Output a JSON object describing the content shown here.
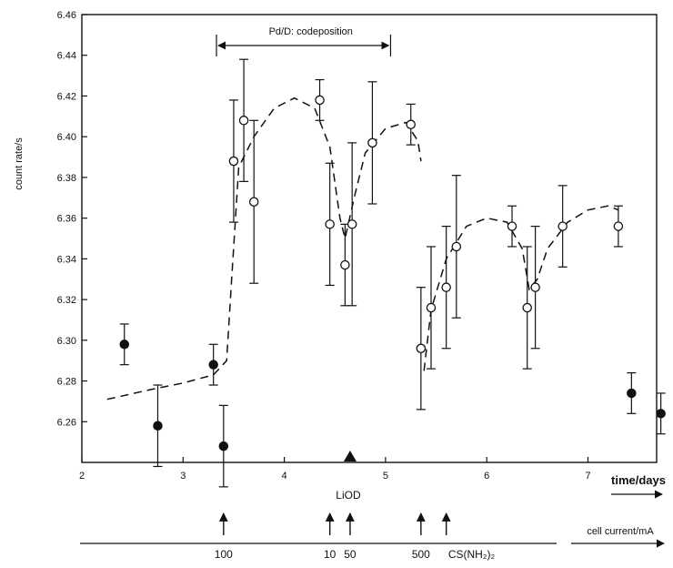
{
  "chart_data": {
    "type": "scatter",
    "title": "",
    "xlabel": "time/days",
    "ylabel": "count rate/s",
    "xlim": [
      2,
      7.45
    ],
    "ylim": [
      6.24,
      6.46
    ],
    "x_ticks": [
      2,
      3,
      4,
      5,
      6,
      7
    ],
    "x_tick_labels": [
      "2",
      "3",
      "4",
      "5",
      "6",
      "7"
    ],
    "y_ticks": [
      6.26,
      6.28,
      6.3,
      6.32,
      6.34,
      6.36,
      6.38,
      6.4,
      6.42,
      6.44,
      6.46
    ],
    "y_tick_labels": [
      "6.26",
      "6.28",
      "6.30",
      "6.32",
      "6.34",
      "6.36",
      "6.38",
      "6.40",
      "6.42",
      "6.44",
      "6.46"
    ],
    "grid": false,
    "series": [
      {
        "marker": "filled-circle",
        "points": [
          {
            "x": 2.42,
            "y": 6.298,
            "err": 0.01
          },
          {
            "x": 2.75,
            "y": 6.258,
            "err": 0.02
          },
          {
            "x": 3.3,
            "y": 6.288,
            "err": 0.01
          },
          {
            "x": 3.4,
            "y": 6.248,
            "err": 0.02
          },
          {
            "x": 7.43,
            "y": 6.274,
            "err": 0.01
          },
          {
            "x": 7.72,
            "y": 6.264,
            "err": 0.01
          }
        ]
      },
      {
        "marker": "open-circle",
        "points": [
          {
            "x": 3.5,
            "y": 6.388,
            "err": 0.03
          },
          {
            "x": 3.6,
            "y": 6.408,
            "err": 0.03
          },
          {
            "x": 3.7,
            "y": 6.368,
            "err": 0.04
          },
          {
            "x": 4.35,
            "y": 6.418,
            "err": 0.01
          },
          {
            "x": 4.45,
            "y": 6.357,
            "err": 0.03
          },
          {
            "x": 4.6,
            "y": 6.337,
            "err": 0.02
          },
          {
            "x": 4.67,
            "y": 6.357,
            "err": 0.04
          },
          {
            "x": 4.87,
            "y": 6.397,
            "err": 0.03
          },
          {
            "x": 5.25,
            "y": 6.406,
            "err": 0.01
          },
          {
            "x": 5.35,
            "y": 6.296,
            "err": 0.03
          },
          {
            "x": 5.45,
            "y": 6.316,
            "err": 0.03
          },
          {
            "x": 5.6,
            "y": 6.326,
            "err": 0.03
          },
          {
            "x": 5.7,
            "y": 6.346,
            "err": 0.035
          },
          {
            "x": 6.25,
            "y": 6.356,
            "err": 0.01
          },
          {
            "x": 6.4,
            "y": 6.316,
            "err": 0.03
          },
          {
            "x": 6.48,
            "y": 6.326,
            "err": 0.03
          },
          {
            "x": 6.75,
            "y": 6.356,
            "err": 0.02
          },
          {
            "x": 7.3,
            "y": 6.356,
            "err": 0.01
          }
        ]
      }
    ],
    "fit_curve": {
      "style": "dashed",
      "segments": [
        [
          [
            2.25,
            6.271
          ],
          [
            2.7,
            6.276
          ],
          [
            3.0,
            6.279
          ],
          [
            3.3,
            6.283
          ],
          [
            3.43,
            6.29
          ],
          [
            3.48,
            6.33
          ],
          [
            3.55,
            6.385
          ],
          [
            3.7,
            6.4
          ],
          [
            3.9,
            6.414
          ],
          [
            4.1,
            6.419
          ],
          [
            4.3,
            6.414
          ],
          [
            4.45,
            6.395
          ],
          [
            4.55,
            6.36
          ],
          [
            4.6,
            6.35
          ],
          [
            4.7,
            6.372
          ],
          [
            4.8,
            6.392
          ],
          [
            5.0,
            6.404
          ],
          [
            5.2,
            6.407
          ],
          [
            5.32,
            6.398
          ],
          [
            5.35,
            6.388
          ]
        ],
        [
          [
            5.38,
            6.285
          ],
          [
            5.45,
            6.315
          ],
          [
            5.6,
            6.34
          ],
          [
            5.8,
            6.356
          ],
          [
            6.0,
            6.36
          ],
          [
            6.2,
            6.358
          ],
          [
            6.35,
            6.345
          ],
          [
            6.42,
            6.325
          ],
          [
            6.5,
            6.33
          ],
          [
            6.6,
            6.345
          ],
          [
            6.8,
            6.358
          ],
          [
            7.0,
            6.364
          ],
          [
            7.2,
            6.366
          ],
          [
            7.3,
            6.364
          ]
        ]
      ]
    },
    "annotations": {
      "codeposition_label": "Pd/D: codeposition",
      "codeposition_range": [
        3.33,
        5.05
      ],
      "liod_label": "LiOD",
      "liod_x": 4.65
    },
    "cell_current": {
      "label": "cell current/mA",
      "arrow_x": [
        3.4,
        4.45,
        4.65,
        5.35,
        5.6
      ],
      "labels": [
        {
          "text": "100",
          "x": 3.4
        },
        {
          "text": "10",
          "x": 4.45
        },
        {
          "text": "50",
          "x": 4.65
        },
        {
          "text": "500",
          "x": 5.35
        }
      ],
      "cs_label": "CS(NH₂)₂",
      "cs_x": 5.85
    }
  }
}
